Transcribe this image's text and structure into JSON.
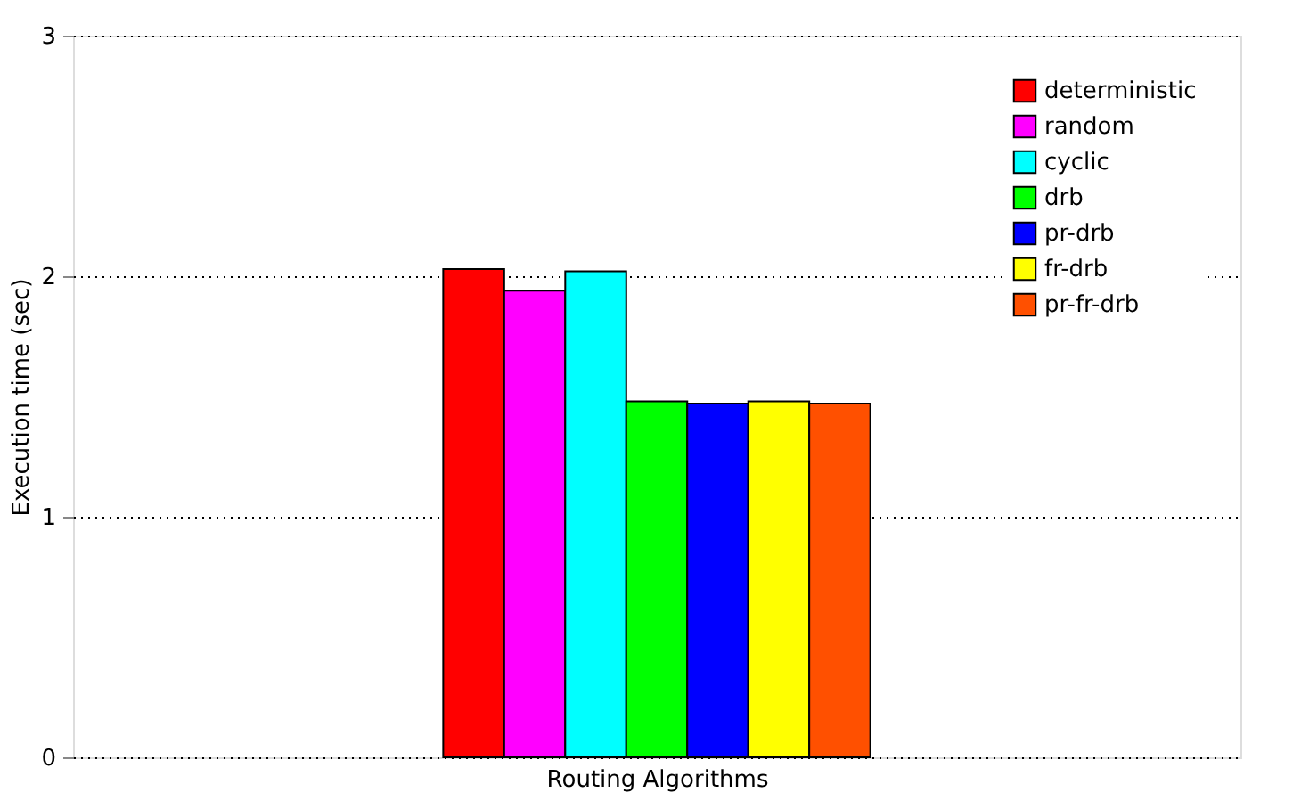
{
  "chart_data": {
    "type": "bar",
    "xlabel": "Routing Algorithms",
    "ylabel": "Execution time (sec)",
    "categories": [
      null
    ],
    "series": [
      {
        "name": "deterministic",
        "color": "#ff0000",
        "values": [
          2.03
        ]
      },
      {
        "name": "random",
        "color": "#ff00ff",
        "values": [
          1.94
        ]
      },
      {
        "name": "cyclic",
        "color": "#00ffff",
        "values": [
          2.02
        ]
      },
      {
        "name": "drb",
        "color": "#00ff00",
        "values": [
          1.48
        ]
      },
      {
        "name": "pr-drb",
        "color": "#0000ff",
        "values": [
          1.47
        ]
      },
      {
        "name": "fr-drb",
        "color": "#ffff00",
        "values": [
          1.48
        ]
      },
      {
        "name": "pr-fr-drb",
        "color": "#ff5000",
        "values": [
          1.47
        ]
      }
    ],
    "ylim": [
      0,
      3
    ],
    "yticks": [
      0,
      1,
      2,
      3
    ],
    "grid": "y",
    "legend": "top right"
  }
}
